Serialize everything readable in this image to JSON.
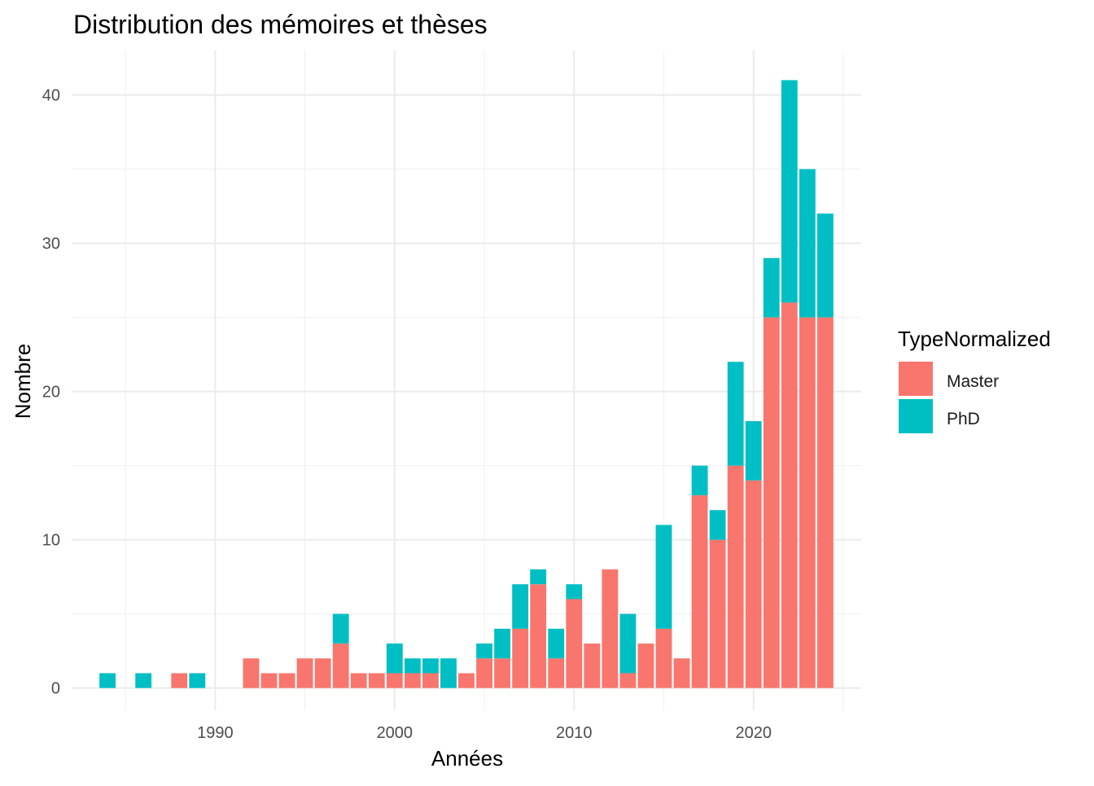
{
  "chart_data": {
    "type": "bar",
    "stacked": true,
    "title": "Distribution des mémoires et thèses",
    "xlabel": "Années",
    "ylabel": "Nombre",
    "xlim": [
      1982,
      2026
    ],
    "ylim": [
      -1.5,
      43
    ],
    "x_ticks": [
      1990,
      2000,
      2010,
      2020
    ],
    "y_ticks": [
      0,
      10,
      20,
      30,
      40
    ],
    "grid": true,
    "legend": {
      "title": "TypeNormalized",
      "position": "right"
    },
    "x": [
      1984,
      1986,
      1988,
      1989,
      1992,
      1993,
      1994,
      1995,
      1996,
      1997,
      1998,
      1999,
      2000,
      2001,
      2002,
      2003,
      2004,
      2005,
      2006,
      2007,
      2008,
      2009,
      2010,
      2011,
      2012,
      2013,
      2014,
      2015,
      2016,
      2017,
      2018,
      2019,
      2020,
      2021,
      2022,
      2023,
      2024
    ],
    "series": [
      {
        "name": "Master",
        "color": "#F8766D",
        "values": [
          0,
          0,
          1,
          0,
          2,
          1,
          1,
          2,
          2,
          3,
          1,
          1,
          1,
          1,
          1,
          0,
          1,
          2,
          2,
          4,
          7,
          2,
          6,
          3,
          8,
          1,
          3,
          4,
          2,
          13,
          10,
          15,
          14,
          25,
          26,
          25,
          25
        ]
      },
      {
        "name": "PhD",
        "color": "#00BFC4",
        "values": [
          1,
          1,
          0,
          1,
          0,
          0,
          0,
          0,
          0,
          2,
          0,
          0,
          2,
          1,
          1,
          2,
          0,
          1,
          2,
          3,
          1,
          2,
          1,
          0,
          0,
          4,
          0,
          7,
          0,
          2,
          2,
          7,
          4,
          4,
          15,
          10,
          7
        ]
      }
    ]
  }
}
